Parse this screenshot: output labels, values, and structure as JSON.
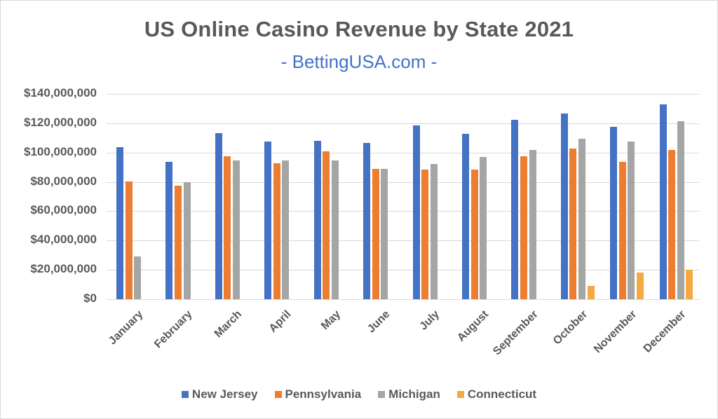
{
  "chart_data": {
    "type": "bar",
    "title": "US Online Casino Revenue by State 2021",
    "subtitle": "- BettingUSA.com -",
    "xlabel": "",
    "ylabel": "",
    "ylim": [
      0,
      140000000
    ],
    "yticks": [
      0,
      20000000,
      40000000,
      60000000,
      80000000,
      100000000,
      120000000,
      140000000
    ],
    "ytick_labels": [
      "$0",
      "$20,000,000",
      "$40,000,000",
      "$60,000,000",
      "$80,000,000",
      "$100,000,000",
      "$120,000,000",
      "$140,000,000"
    ],
    "grid": true,
    "legend_position": "bottom",
    "categories": [
      "January",
      "February",
      "March",
      "April",
      "May",
      "June",
      "July",
      "August",
      "September",
      "October",
      "November",
      "December"
    ],
    "series": [
      {
        "name": "New Jersey",
        "color": "#4472c4",
        "values": [
          103700000,
          93700000,
          113400000,
          107400000,
          108000000,
          106700000,
          118300000,
          112800000,
          122200000,
          126600000,
          117500000,
          132800000
        ]
      },
      {
        "name": "Pennsylvania",
        "color": "#ed7d31",
        "values": [
          80300000,
          77600000,
          97600000,
          92600000,
          101000000,
          88900000,
          88400000,
          88400000,
          97500000,
          102700000,
          93600000,
          101600000
        ]
      },
      {
        "name": "Michigan",
        "color": "#a5a5a5",
        "values": [
          29000000,
          79800000,
          94700000,
          94600000,
          94600000,
          88900000,
          92000000,
          97000000,
          102000000,
          109400000,
          107500000,
          121500000
        ]
      },
      {
        "name": "Connecticut",
        "color": "#f4a942",
        "values": [
          0,
          0,
          0,
          0,
          0,
          0,
          0,
          0,
          0,
          9000000,
          18300000,
          20200000
        ]
      }
    ]
  }
}
